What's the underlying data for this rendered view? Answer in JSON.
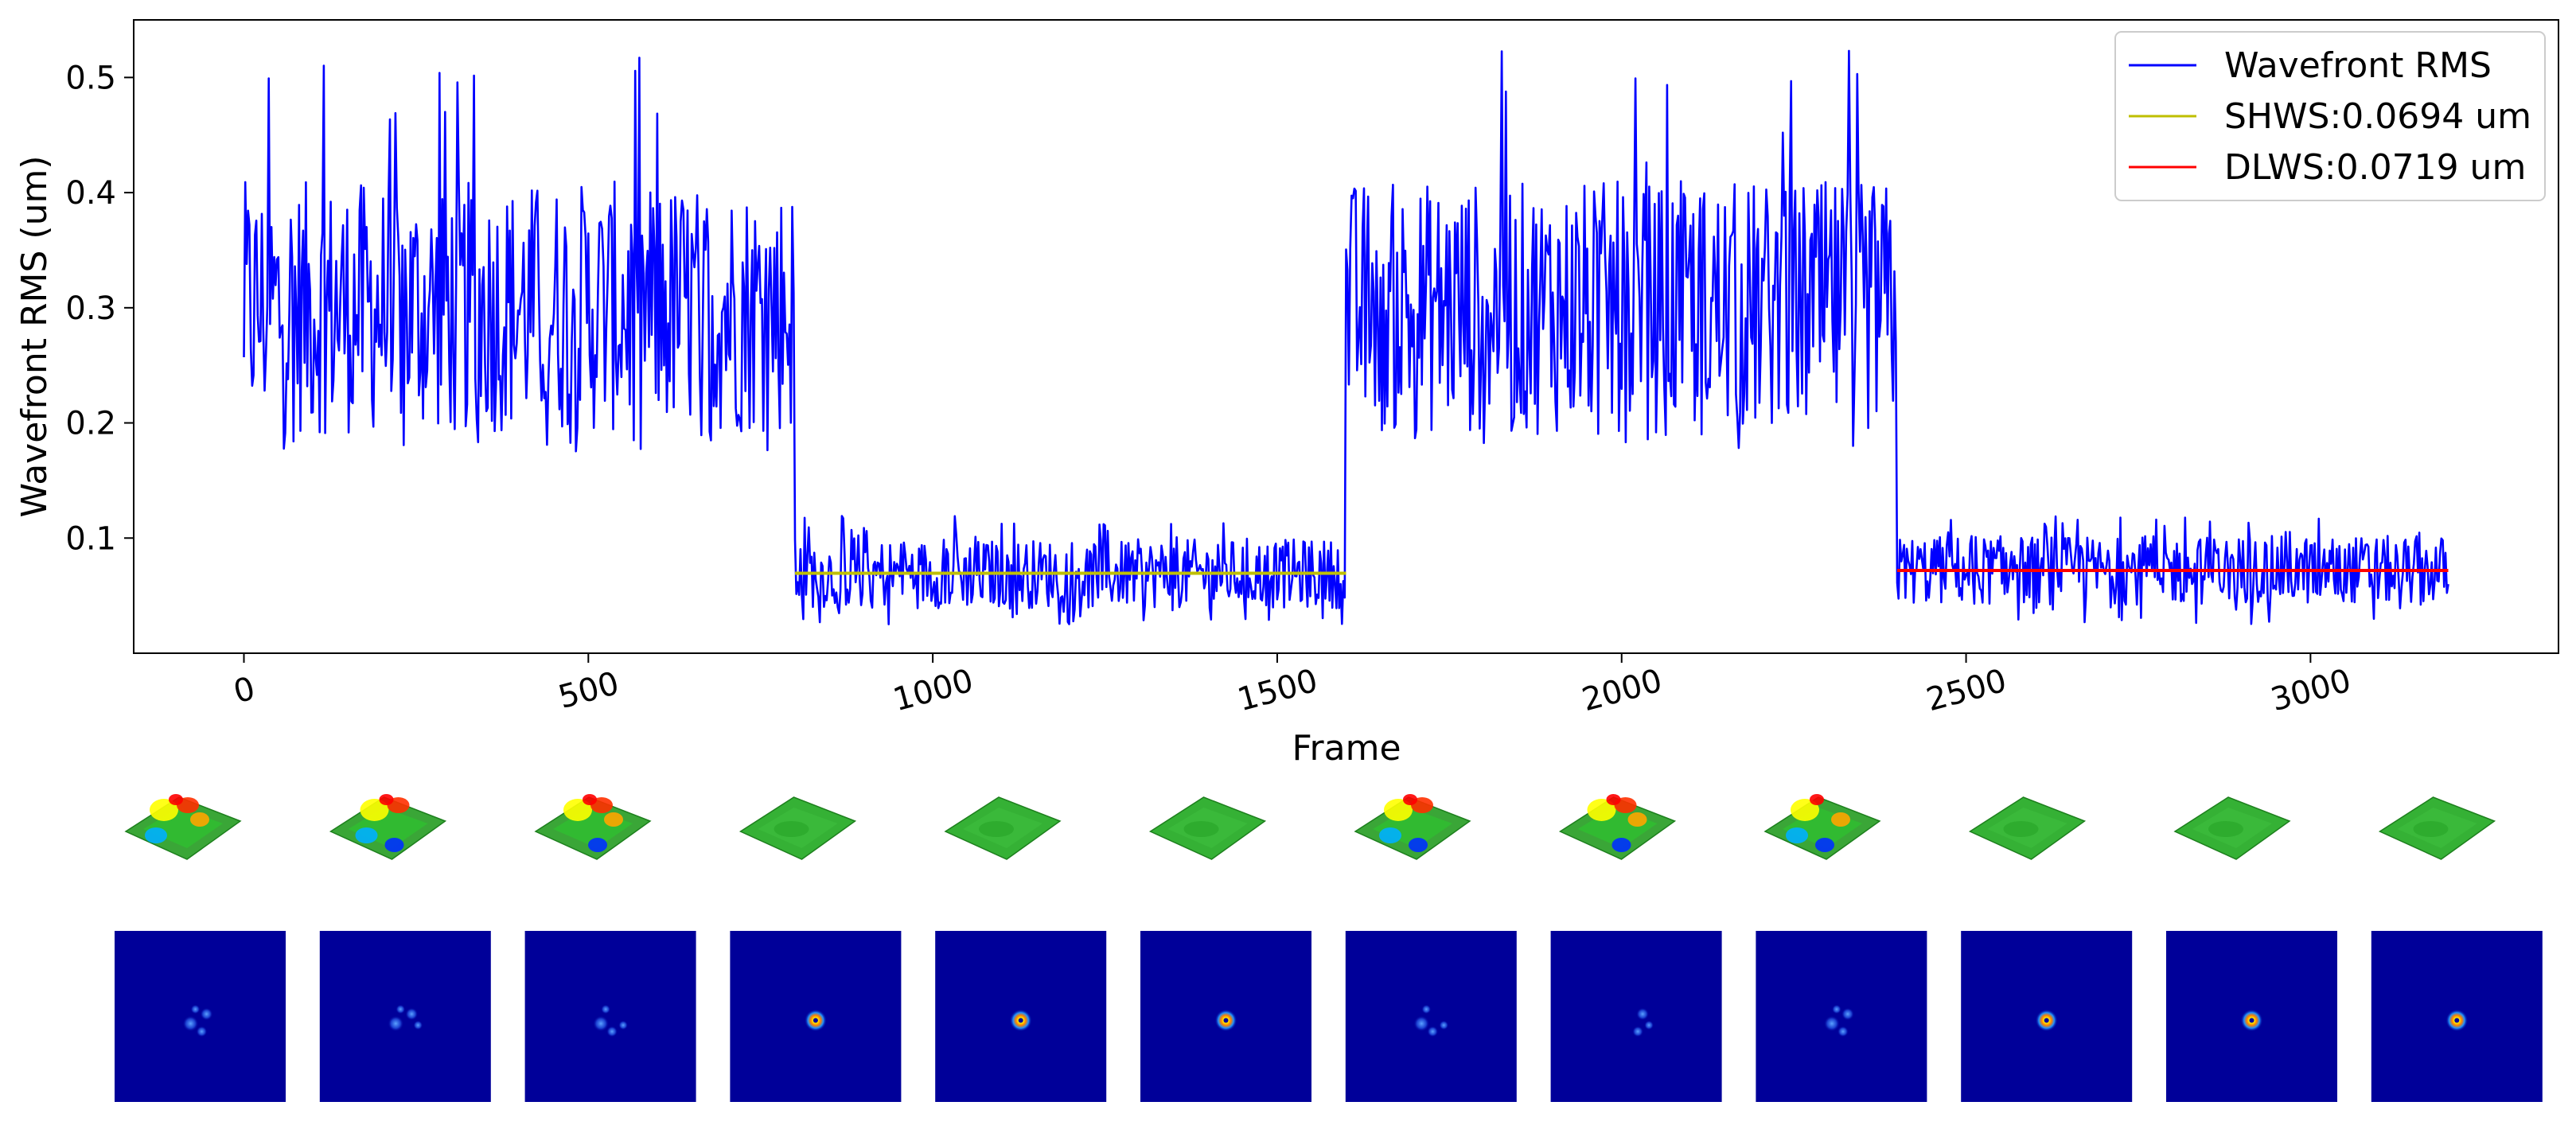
{
  "chart_data": {
    "type": "line",
    "title": "",
    "xlabel": "Frame",
    "ylabel": "Wavefront RMS (um)",
    "xlim": [
      -160,
      3360
    ],
    "ylim": [
      0.0,
      0.55
    ],
    "x_ticks": [
      0,
      500,
      1000,
      1500,
      2000,
      2500,
      3000
    ],
    "x_tick_labels": [
      "0",
      "500",
      "1000",
      "1500",
      "2000",
      "2500",
      "3000"
    ],
    "y_ticks": [
      0.1,
      0.2,
      0.3,
      0.4,
      0.5
    ],
    "y_tick_labels": [
      "0.1",
      "0.2",
      "0.3",
      "0.4",
      "0.5"
    ],
    "grid": false,
    "legend_position": "top-right",
    "series": [
      {
        "name": "Wavefront RMS",
        "color": "#0000ff",
        "segments": [
          {
            "x_range": [
              0,
              800
            ],
            "mean": 0.31,
            "min": 0.175,
            "max": 0.525
          },
          {
            "x_range": [
              800,
              1600
            ],
            "mean": 0.069,
            "min": 0.025,
            "max": 0.12
          },
          {
            "x_range": [
              1600,
              2400
            ],
            "mean": 0.31,
            "min": 0.175,
            "max": 0.525
          },
          {
            "x_range": [
              2400,
              3200
            ],
            "mean": 0.072,
            "min": 0.025,
            "max": 0.12
          }
        ]
      },
      {
        "name": "SHWS:0.0694 um",
        "color": "#bfbf00",
        "x": [
          800,
          1600
        ],
        "y": [
          0.0694,
          0.0694
        ]
      },
      {
        "name": "DLWS:0.0719 um",
        "color": "#ff0000",
        "x": [
          2400,
          3200
        ],
        "y": [
          0.0719,
          0.0719
        ]
      }
    ],
    "insets": {
      "wavefront_surfaces": {
        "count": 12,
        "type": "3d-surface"
      },
      "psf_images": {
        "count": 12,
        "type": "heatmap",
        "spot": [
          "diffuse",
          "diffuse",
          "diffuse",
          "sharp",
          "sharp",
          "sharp",
          "diffuse",
          "diffuse",
          "diffuse",
          "sharp",
          "sharp",
          "sharp"
        ]
      }
    }
  }
}
